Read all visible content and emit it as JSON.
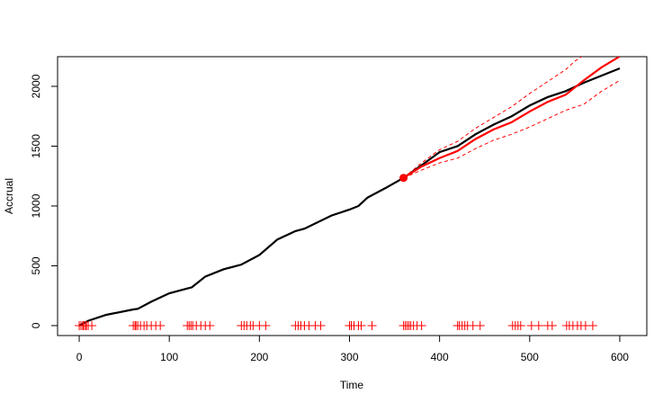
{
  "chart_data": {
    "type": "line",
    "x_label": "Time",
    "y_label": "Accrual",
    "xlim": [
      -24,
      630
    ],
    "ylim": [
      -83,
      2248
    ],
    "xticks": [
      0,
      100,
      200,
      300,
      400,
      500,
      600
    ],
    "yticks": [
      0,
      500,
      1000,
      1500,
      2000
    ],
    "series": [
      {
        "color": "#000000",
        "linestyle": "solid",
        "linewidth": 2.2,
        "x": [
          0,
          10,
          30,
          60,
          65,
          80,
          100,
          120,
          125,
          140,
          160,
          180,
          200,
          220,
          240,
          250,
          280,
          300,
          310,
          320,
          340,
          360,
          380,
          400,
          420,
          440,
          460,
          480,
          500,
          520,
          540,
          560,
          580,
          600
        ],
        "values": [
          0,
          40,
          90,
          135,
          140,
          200,
          270,
          310,
          320,
          410,
          470,
          510,
          590,
          720,
          790,
          810,
          920,
          970,
          1000,
          1070,
          1150,
          1235,
          1340,
          1450,
          1500,
          1600,
          1680,
          1750,
          1840,
          1910,
          1960,
          2030,
          2090,
          2150
        ]
      },
      {
        "color": "#ff0000",
        "linestyle": "solid",
        "linewidth": 2.2,
        "x": [
          360,
          380,
          400,
          420,
          440,
          460,
          480,
          500,
          520,
          540,
          560,
          580,
          600
        ],
        "values": [
          1235,
          1330,
          1400,
          1460,
          1560,
          1640,
          1700,
          1790,
          1870,
          1930,
          2050,
          2160,
          2250
        ]
      },
      {
        "color": "#ff0000",
        "linestyle": "dashed",
        "linewidth": 1,
        "x": [
          360,
          380,
          400,
          420,
          440,
          460,
          480,
          500,
          520,
          540,
          550,
          560
        ],
        "values": [
          1235,
          1360,
          1470,
          1540,
          1650,
          1740,
          1830,
          1940,
          2040,
          2140,
          2210,
          2260
        ]
      },
      {
        "color": "#ff0000",
        "linestyle": "dashed",
        "linewidth": 1,
        "x": [
          360,
          380,
          400,
          420,
          440,
          460,
          480,
          500,
          520,
          540,
          560,
          580,
          600
        ],
        "values": [
          1235,
          1300,
          1360,
          1400,
          1480,
          1550,
          1600,
          1660,
          1730,
          1800,
          1850,
          1960,
          2050
        ]
      },
      {
        "color": "#ff0000",
        "marker": "circle",
        "x": [
          360
        ],
        "values": [
          1235
        ]
      },
      {
        "color": "#ff0000",
        "marker": "plus",
        "x": [
          0,
          2,
          4,
          5,
          7,
          8,
          10,
          14,
          60,
          62,
          63,
          65,
          68,
          72,
          75,
          80,
          85,
          90,
          120,
          122,
          124,
          126,
          130,
          135,
          140,
          145,
          180,
          183,
          186,
          190,
          193,
          200,
          207,
          240,
          243,
          246,
          250,
          255,
          262,
          268,
          300,
          302,
          305,
          310,
          313,
          325,
          360,
          362,
          364,
          366,
          368,
          371,
          375,
          380,
          420,
          422,
          425,
          428,
          431,
          437,
          445,
          481,
          484,
          487,
          490,
          502,
          510,
          520,
          525,
          541,
          544,
          548,
          553,
          557,
          562,
          570
        ],
        "values": [
          0,
          0,
          0,
          0,
          0,
          0,
          0,
          0,
          0,
          0,
          0,
          0,
          0,
          0,
          0,
          0,
          0,
          0,
          0,
          0,
          0,
          0,
          0,
          0,
          0,
          0,
          0,
          0,
          0,
          0,
          0,
          0,
          0,
          0,
          0,
          0,
          0,
          0,
          0,
          0,
          0,
          0,
          0,
          0,
          0,
          0,
          0,
          0,
          0,
          0,
          0,
          0,
          0,
          0,
          0,
          0,
          0,
          0,
          0,
          0,
          0,
          0,
          0,
          0,
          0,
          0,
          0,
          0,
          0,
          0,
          0,
          0,
          0,
          0,
          0,
          0
        ]
      }
    ]
  }
}
